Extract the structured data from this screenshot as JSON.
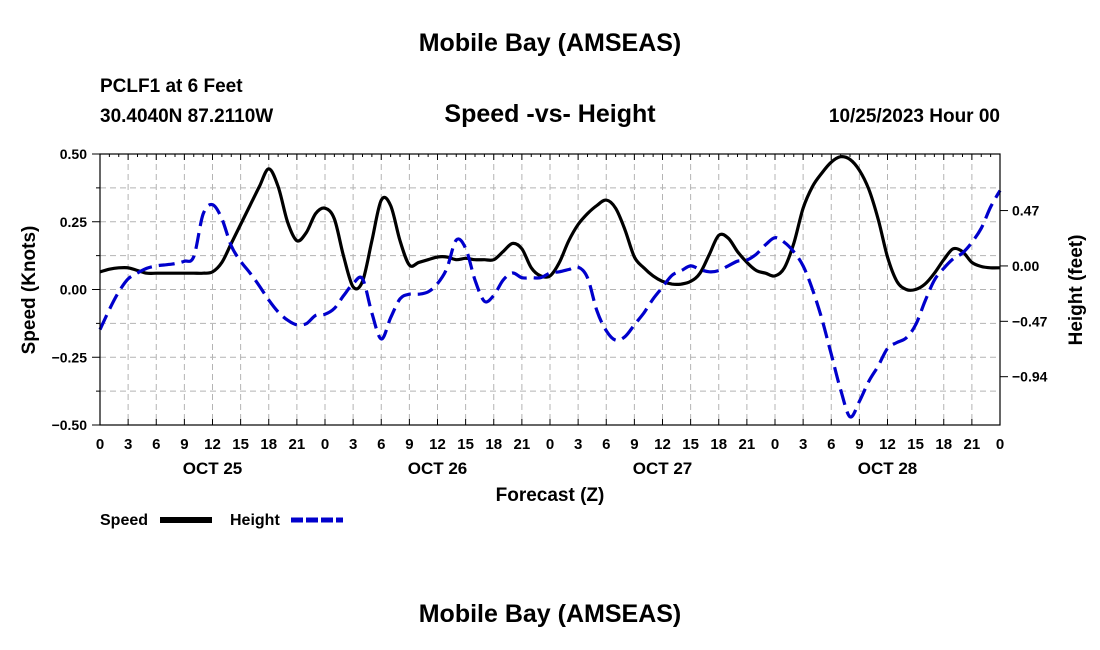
{
  "page": {
    "title": "Mobile Bay (AMSEAS)",
    "station": "PCLF1 at 6 Feet",
    "coordinates": "30.4040N  87.2110W",
    "plot_title": "Speed -vs- Height",
    "timestamp": "10/25/2023 Hour 00",
    "footer_title": "Mobile Bay (AMSEAS)"
  },
  "chart_data": {
    "type": "line",
    "title": "Speed -vs- Height",
    "xlabel": "Forecast (Z)",
    "ylabel": "Speed (Knots)",
    "y2label": "Height (feet)",
    "x_range": [
      0,
      96
    ],
    "ylim": [
      -0.5,
      0.5
    ],
    "y2lim": [
      -1.35,
      0.95
    ],
    "grid": true,
    "x_tick_values": [
      0,
      3,
      6,
      9,
      12,
      15,
      18,
      21,
      24,
      27,
      30,
      33,
      36,
      39,
      42,
      45,
      48,
      51,
      54,
      57,
      60,
      63,
      66,
      69,
      72,
      75,
      78,
      81,
      84,
      87,
      90,
      93,
      96
    ],
    "x_tick_labels": [
      "0",
      "3",
      "6",
      "9",
      "12",
      "15",
      "18",
      "21",
      "0",
      "3",
      "6",
      "9",
      "12",
      "15",
      "18",
      "21",
      "0",
      "3",
      "6",
      "9",
      "12",
      "15",
      "18",
      "21",
      "0",
      "3",
      "6",
      "9",
      "12",
      "15",
      "18",
      "21",
      "0"
    ],
    "day_labels": [
      {
        "x": 12,
        "label": "OCT 25"
      },
      {
        "x": 36,
        "label": "OCT 26"
      },
      {
        "x": 60,
        "label": "OCT 27"
      },
      {
        "x": 84,
        "label": "OCT 28"
      }
    ],
    "y_ticks": [
      {
        "value": 0.5,
        "label": "0.50"
      },
      {
        "value": 0.25,
        "label": "0.25"
      },
      {
        "value": 0.0,
        "label": "0.00"
      },
      {
        "value": -0.25,
        "label": "−0.25"
      },
      {
        "value": -0.5,
        "label": "−0.50"
      }
    ],
    "y2_ticks": [
      {
        "value": 0.47,
        "label": "0.47"
      },
      {
        "value": 0.0,
        "label": "0.00"
      },
      {
        "value": -0.47,
        "label": "−0.47"
      },
      {
        "value": -0.94,
        "label": "−0.94"
      }
    ],
    "legend_placement": "bottom-left",
    "series": [
      {
        "name": "Speed",
        "axis": "left",
        "color": "#000000",
        "dash": "solid",
        "x": [
          0,
          1,
          2,
          3,
          4,
          5,
          6,
          7,
          8,
          9,
          10,
          11,
          12,
          13,
          14,
          15,
          16,
          17,
          18,
          19,
          20,
          21,
          22,
          23,
          24,
          25,
          26,
          27,
          28,
          29,
          30,
          31,
          32,
          33,
          34,
          35,
          36,
          37,
          38,
          39,
          40,
          41,
          42,
          43,
          44,
          45,
          46,
          47,
          48,
          49,
          50,
          51,
          52,
          53,
          54,
          55,
          56,
          57,
          58,
          59,
          60,
          61,
          62,
          63,
          64,
          65,
          66,
          67,
          68,
          69,
          70,
          71,
          72,
          73,
          74,
          75,
          76,
          77,
          78,
          79,
          80,
          81,
          82,
          83,
          84,
          85,
          86,
          87,
          88,
          89,
          90,
          91,
          92,
          93,
          94,
          95,
          96
        ],
        "values": [
          0.065,
          0.075,
          0.08,
          0.08,
          0.07,
          0.06,
          0.06,
          0.06,
          0.06,
          0.06,
          0.06,
          0.06,
          0.065,
          0.1,
          0.17,
          0.24,
          0.31,
          0.38,
          0.445,
          0.38,
          0.25,
          0.18,
          0.21,
          0.28,
          0.3,
          0.26,
          0.12,
          0.01,
          0.03,
          0.18,
          0.33,
          0.31,
          0.18,
          0.09,
          0.1,
          0.11,
          0.12,
          0.12,
          0.11,
          0.115,
          0.11,
          0.11,
          0.11,
          0.14,
          0.17,
          0.15,
          0.08,
          0.05,
          0.05,
          0.1,
          0.18,
          0.24,
          0.28,
          0.31,
          0.33,
          0.3,
          0.22,
          0.12,
          0.08,
          0.05,
          0.03,
          0.02,
          0.02,
          0.03,
          0.06,
          0.13,
          0.2,
          0.19,
          0.14,
          0.1,
          0.07,
          0.06,
          0.05,
          0.08,
          0.17,
          0.3,
          0.38,
          0.43,
          0.47,
          0.49,
          0.48,
          0.44,
          0.37,
          0.26,
          0.12,
          0.03,
          0.0,
          0.0,
          0.02,
          0.06,
          0.11,
          0.15,
          0.14,
          0.1,
          0.085,
          0.08,
          0.08
        ]
      },
      {
        "name": "Height",
        "axis": "right",
        "color": "#0000cc",
        "dash": "dashed",
        "x": [
          0,
          1,
          2,
          3,
          4,
          5,
          6,
          7,
          8,
          9,
          10,
          11,
          12,
          13,
          14,
          15,
          16,
          17,
          18,
          19,
          20,
          21,
          22,
          23,
          24,
          25,
          26,
          27,
          28,
          29,
          30,
          31,
          32,
          33,
          34,
          35,
          36,
          37,
          38,
          39,
          40,
          41,
          42,
          43,
          44,
          45,
          46,
          47,
          48,
          49,
          50,
          51,
          52,
          53,
          54,
          55,
          56,
          57,
          58,
          59,
          60,
          61,
          62,
          63,
          64,
          65,
          66,
          67,
          68,
          69,
          70,
          71,
          72,
          73,
          74,
          75,
          76,
          77,
          78,
          79,
          80,
          81,
          82,
          83,
          84,
          85,
          86,
          87,
          88,
          89,
          90,
          91,
          92,
          93,
          94,
          95,
          96
        ],
        "values": [
          -0.54,
          -0.37,
          -0.22,
          -0.11,
          -0.06,
          -0.02,
          0.0,
          0.01,
          0.02,
          0.04,
          0.08,
          0.44,
          0.52,
          0.4,
          0.17,
          0.04,
          -0.06,
          -0.17,
          -0.29,
          -0.39,
          -0.46,
          -0.5,
          -0.49,
          -0.42,
          -0.41,
          -0.36,
          -0.25,
          -0.15,
          -0.11,
          -0.4,
          -0.62,
          -0.44,
          -0.28,
          -0.24,
          -0.24,
          -0.22,
          -0.15,
          -0.02,
          0.22,
          0.15,
          -0.12,
          -0.3,
          -0.25,
          -0.12,
          -0.06,
          -0.1,
          -0.1,
          -0.1,
          -0.06,
          -0.05,
          -0.03,
          -0.01,
          -0.1,
          -0.38,
          -0.55,
          -0.63,
          -0.6,
          -0.5,
          -0.4,
          -0.28,
          -0.18,
          -0.08,
          -0.04,
          0.0,
          -0.03,
          -0.05,
          -0.04,
          0.0,
          0.04,
          0.05,
          0.1,
          0.18,
          0.24,
          0.2,
          0.12,
          0.0,
          -0.2,
          -0.45,
          -0.75,
          -1.05,
          -1.28,
          -1.15,
          -0.98,
          -0.85,
          -0.7,
          -0.65,
          -0.61,
          -0.5,
          -0.3,
          -0.12,
          -0.02,
          0.06,
          0.11,
          0.2,
          0.32,
          0.5,
          0.64
        ]
      }
    ]
  }
}
